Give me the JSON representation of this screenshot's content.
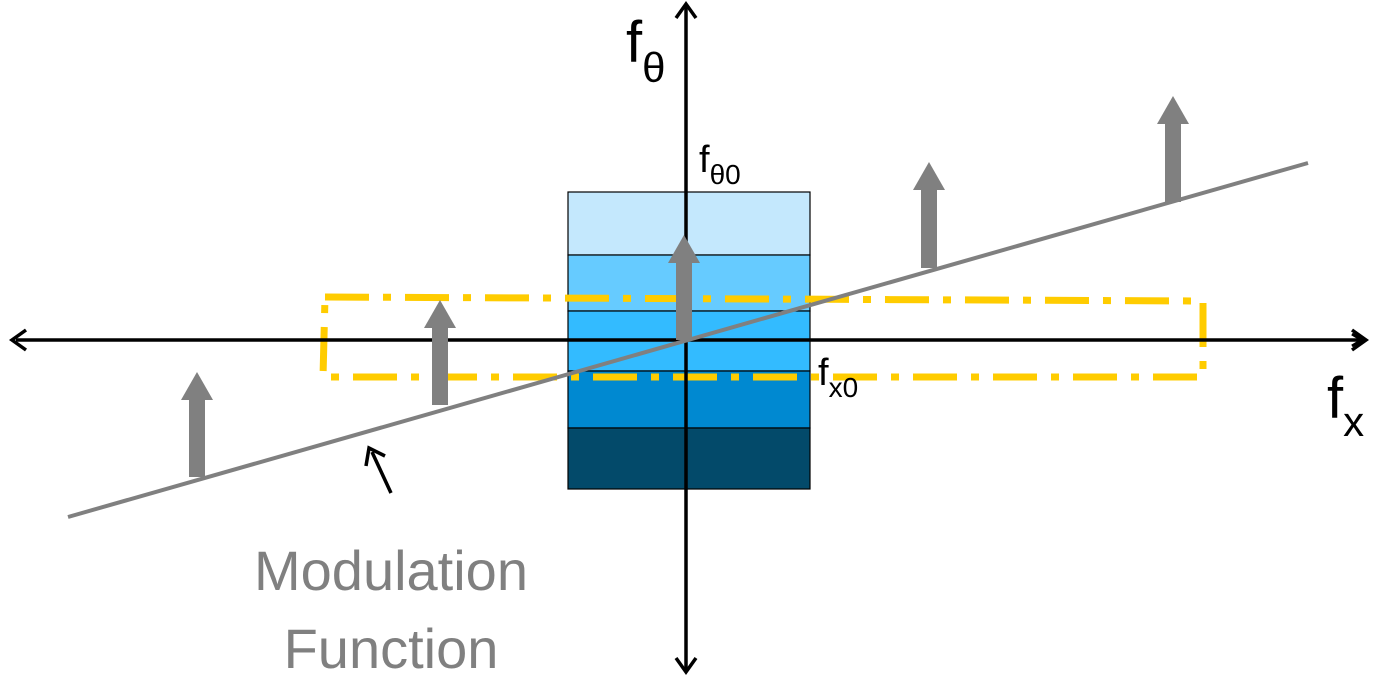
{
  "labels": {
    "f_theta": {
      "base": "f",
      "sub": "θ"
    },
    "f_x": {
      "base": "f",
      "sub": "x"
    },
    "f_theta0": {
      "base": "f",
      "sub": "θ0"
    },
    "f_x0": {
      "base": "f",
      "sub": "x0"
    },
    "modulation_line1": "Modulation",
    "modulation_line2": "Function"
  },
  "colors": {
    "axis": "#000000",
    "modulation_line": "#808080",
    "impulse_arrow": "#808080",
    "dashed_box": "#FFCC00",
    "band_1": "#C4E8FD",
    "band_2": "#66CBFF",
    "band_3": "#33BBFF",
    "band_4": "#1AA7F2",
    "band_5": "#0089D1",
    "band_6": "#034A6A",
    "label_gray": "#808080"
  }
}
